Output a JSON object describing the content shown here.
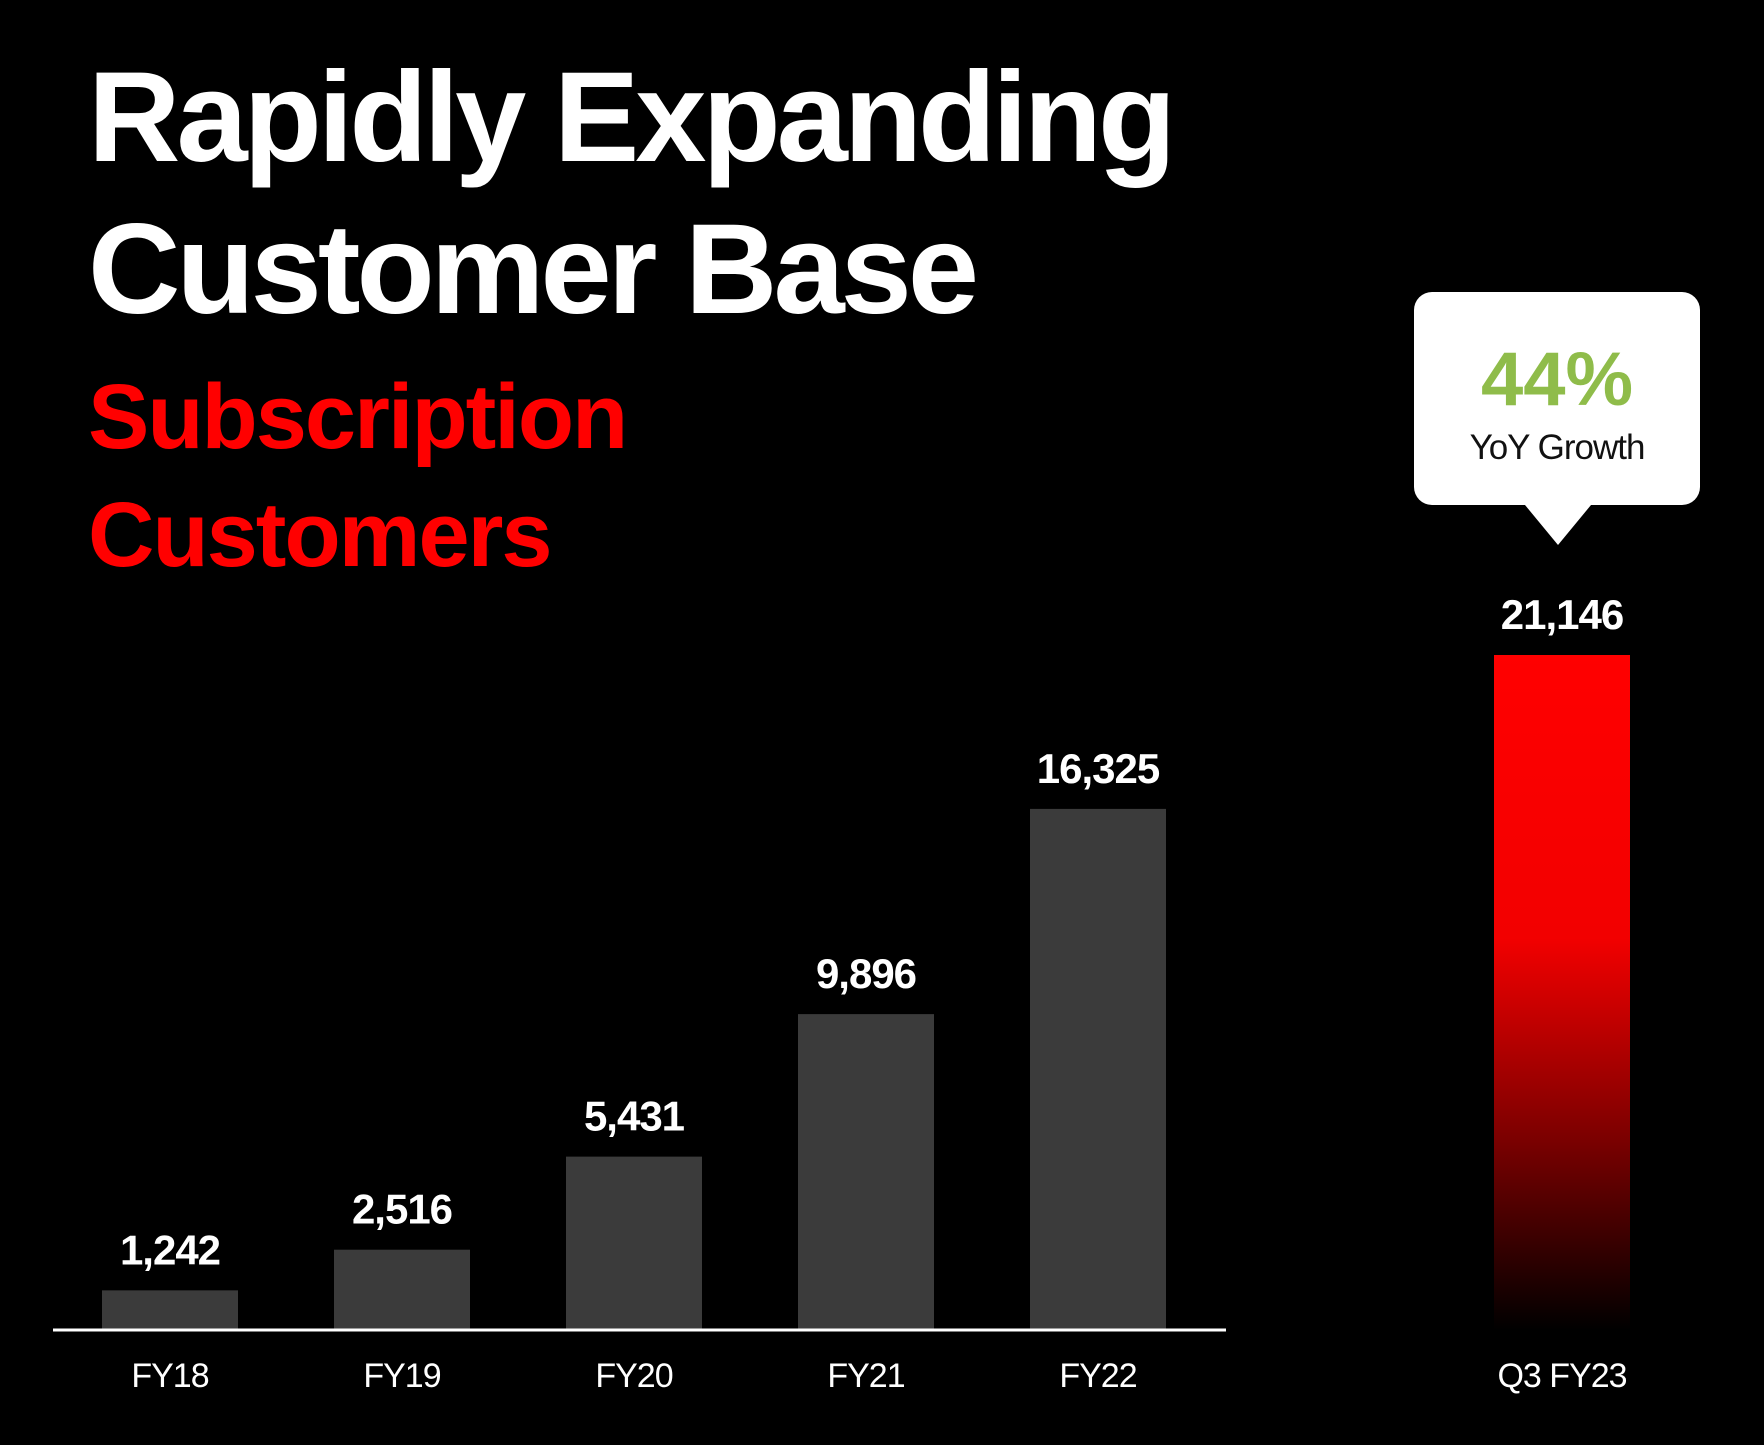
{
  "header": {
    "title_line1": "Rapidly Expanding",
    "title_line2": "Customer Base",
    "subtitle_line1": "Subscription",
    "subtitle_line2": "Customers"
  },
  "callout": {
    "value": "44%",
    "label": "YoY Growth"
  },
  "colors": {
    "background": "#000000",
    "bar": "#3b3b3b",
    "highlight": "#ff0000",
    "accent_green": "#8fbc4a",
    "text": "#ffffff"
  },
  "chart_data": {
    "type": "bar",
    "title": "Subscription Customers",
    "categories": [
      "FY18",
      "FY19",
      "FY20",
      "FY21",
      "FY22",
      "Q3 FY23"
    ],
    "values": [
      1242,
      2516,
      5431,
      9896,
      16325,
      21146
    ],
    "value_labels": [
      "1,242",
      "2,516",
      "5,431",
      "9,896",
      "16,325",
      "21,146"
    ],
    "highlight_index": 5,
    "xlabel": "",
    "ylabel": "",
    "ylim": [
      0,
      21146
    ],
    "grid": false,
    "legend": "none"
  }
}
